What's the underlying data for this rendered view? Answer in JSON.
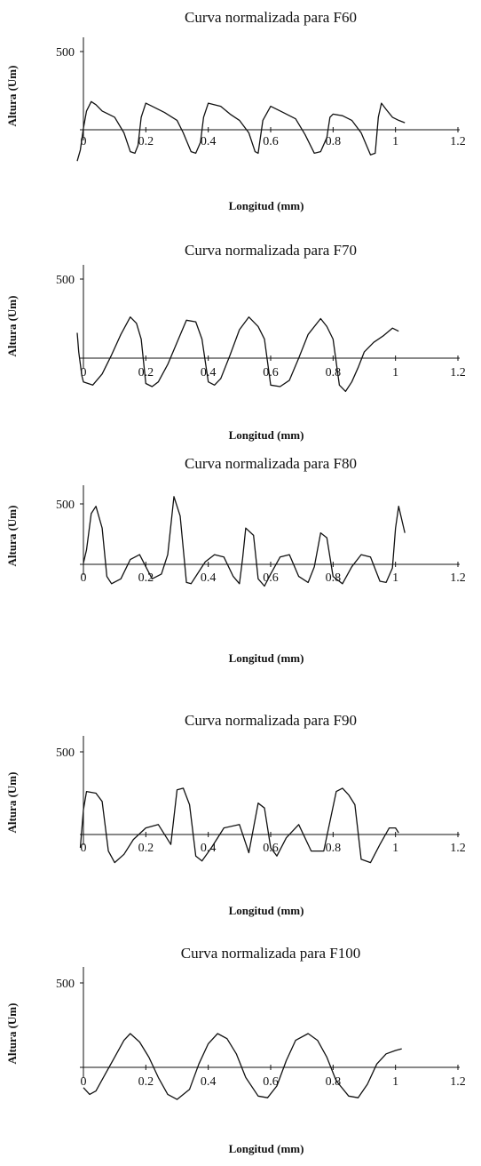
{
  "chart_data": [
    {
      "type": "line",
      "title": "Curva normalizada para F60",
      "xlabel": "Longitud (mm)",
      "ylabel": "Altura (Um)",
      "xlim": [
        0,
        1.2
      ],
      "ylim": [
        -180,
        500
      ],
      "xticks": [
        "0",
        "0.2",
        "0.4",
        "0.6",
        "0.8",
        "1",
        "1.2"
      ],
      "yticks": [
        "500"
      ],
      "series": [
        {
          "color": "#111111",
          "x": [
            -0.02,
            -0.01,
            0.0,
            0.01,
            0.025,
            0.04,
            0.06,
            0.1,
            0.13,
            0.15,
            0.165,
            0.175,
            0.185,
            0.2,
            0.22,
            0.26,
            0.3,
            0.32,
            0.345,
            0.36,
            0.375,
            0.385,
            0.4,
            0.44,
            0.47,
            0.5,
            0.53,
            0.55,
            0.56,
            0.575,
            0.6,
            0.64,
            0.68,
            0.71,
            0.74,
            0.76,
            0.78,
            0.79,
            0.8,
            0.83,
            0.86,
            0.89,
            0.92,
            0.935,
            0.945,
            0.955,
            0.97,
            0.99,
            1.01,
            1.03
          ],
          "y": [
            -200,
            -130,
            10,
            120,
            180,
            160,
            120,
            80,
            -20,
            -140,
            -150,
            -100,
            80,
            170,
            150,
            110,
            60,
            -20,
            -140,
            -150,
            -80,
            80,
            170,
            150,
            100,
            60,
            -20,
            -140,
            -150,
            60,
            150,
            110,
            70,
            -30,
            -150,
            -140,
            -50,
            80,
            100,
            90,
            60,
            -20,
            -160,
            -150,
            80,
            170,
            130,
            80,
            60,
            45
          ]
        }
      ]
    },
    {
      "type": "line",
      "title": "Curva normalizada para F70",
      "xlabel": "Longitud (mm)",
      "ylabel": "Altura (Um)",
      "xlim": [
        0,
        1.2
      ],
      "ylim": [
        -220,
        500
      ],
      "xticks": [
        "0",
        "0.2",
        "0.4",
        "0.6",
        "0.8",
        "1",
        "1.2"
      ],
      "yticks": [
        "500"
      ],
      "series": [
        {
          "color": "#111111",
          "x": [
            -0.02,
            -0.015,
            -0.005,
            0.0,
            0.03,
            0.06,
            0.09,
            0.12,
            0.15,
            0.17,
            0.185,
            0.2,
            0.22,
            0.24,
            0.27,
            0.3,
            0.33,
            0.36,
            0.38,
            0.4,
            0.42,
            0.44,
            0.47,
            0.5,
            0.53,
            0.56,
            0.58,
            0.6,
            0.63,
            0.66,
            0.69,
            0.72,
            0.76,
            0.78,
            0.8,
            0.82,
            0.84,
            0.86,
            0.88,
            0.9,
            0.93,
            0.96,
            0.99,
            1.01
          ],
          "y": [
            160,
            40,
            -110,
            -150,
            -170,
            -100,
            20,
            150,
            260,
            220,
            120,
            -160,
            -180,
            -150,
            -40,
            100,
            240,
            230,
            120,
            -150,
            -170,
            -130,
            20,
            180,
            260,
            200,
            120,
            -170,
            -180,
            -140,
            0,
            150,
            250,
            200,
            120,
            -170,
            -210,
            -150,
            -60,
            40,
            100,
            140,
            190,
            170
          ]
        }
      ]
    },
    {
      "type": "line",
      "title": "Curva normalizada para F80",
      "xlabel": "Longitud (mm)",
      "ylabel": "Altura (Um)",
      "xlim": [
        0,
        1.2
      ],
      "ylim": [
        -200,
        560
      ],
      "xticks": [
        "0",
        "0.2",
        "0.4",
        "0.6",
        "0.8",
        "1",
        "1.2"
      ],
      "yticks": [
        "500"
      ],
      "series": [
        {
          "color": "#111111",
          "x": [
            0.0,
            0.01,
            0.025,
            0.04,
            0.06,
            0.075,
            0.09,
            0.12,
            0.15,
            0.18,
            0.22,
            0.25,
            0.27,
            0.29,
            0.31,
            0.33,
            0.345,
            0.36,
            0.39,
            0.42,
            0.45,
            0.48,
            0.5,
            0.51,
            0.52,
            0.545,
            0.56,
            0.58,
            0.6,
            0.63,
            0.66,
            0.69,
            0.72,
            0.74,
            0.76,
            0.78,
            0.8,
            0.83,
            0.86,
            0.89,
            0.92,
            0.95,
            0.97,
            0.99,
            1.0,
            1.01,
            1.03
          ],
          "y": [
            10,
            120,
            420,
            480,
            300,
            -100,
            -160,
            -120,
            40,
            80,
            -120,
            -80,
            80,
            560,
            400,
            -150,
            -160,
            -100,
            20,
            80,
            60,
            -100,
            -160,
            50,
            300,
            240,
            -120,
            -180,
            -80,
            60,
            80,
            -100,
            -150,
            -20,
            260,
            220,
            -100,
            -160,
            -20,
            80,
            60,
            -140,
            -150,
            -30,
            300,
            480,
            260
          ]
        }
      ]
    },
    {
      "type": "line",
      "title": "Curva normalizada para F90",
      "xlabel": "Longitud (mm)",
      "ylabel": "Altura (Um)",
      "xlim": [
        0,
        1.2
      ],
      "ylim": [
        -200,
        500
      ],
      "xticks": [
        "0",
        "0.2",
        "0.4",
        "0.6",
        "0.8",
        "1",
        "1.2"
      ],
      "yticks": [
        "500"
      ],
      "series": [
        {
          "color": "#111111",
          "x": [
            -0.01,
            0.0,
            0.01,
            0.04,
            0.06,
            0.08,
            0.1,
            0.13,
            0.16,
            0.2,
            0.24,
            0.28,
            0.3,
            0.32,
            0.34,
            0.36,
            0.38,
            0.41,
            0.45,
            0.5,
            0.53,
            0.56,
            0.58,
            0.6,
            0.62,
            0.65,
            0.69,
            0.73,
            0.77,
            0.81,
            0.83,
            0.85,
            0.87,
            0.89,
            0.92,
            0.95,
            0.98,
            1.0,
            1.01
          ],
          "y": [
            -80,
            150,
            260,
            250,
            200,
            -100,
            -170,
            -120,
            -30,
            40,
            60,
            -60,
            270,
            280,
            180,
            -130,
            -160,
            -80,
            40,
            60,
            -110,
            190,
            160,
            -80,
            -130,
            -20,
            60,
            -100,
            -100,
            260,
            280,
            240,
            180,
            -150,
            -170,
            -60,
            40,
            40,
            10
          ]
        }
      ]
    },
    {
      "type": "line",
      "title": "Curva normalizada para F100",
      "xlabel": "Longitud (mm)",
      "ylabel": "Altura (Um)",
      "xlim": [
        0,
        1.2
      ],
      "ylim": [
        -220,
        500
      ],
      "xticks": [
        "0",
        "0.2",
        "0.4",
        "0.6",
        "0.8",
        "1",
        "1.2"
      ],
      "yticks": [
        "500"
      ],
      "series": [
        {
          "color": "#111111",
          "x": [
            0.0,
            0.02,
            0.04,
            0.07,
            0.1,
            0.13,
            0.15,
            0.18,
            0.21,
            0.24,
            0.27,
            0.3,
            0.34,
            0.37,
            0.4,
            0.43,
            0.46,
            0.49,
            0.52,
            0.56,
            0.59,
            0.62,
            0.65,
            0.68,
            0.72,
            0.75,
            0.78,
            0.81,
            0.85,
            0.88,
            0.91,
            0.94,
            0.97,
            1.0,
            1.02
          ],
          "y": [
            -120,
            -160,
            -140,
            -40,
            60,
            160,
            200,
            150,
            60,
            -60,
            -160,
            -190,
            -130,
            20,
            140,
            200,
            170,
            80,
            -60,
            -170,
            -180,
            -110,
            40,
            160,
            200,
            160,
            60,
            -80,
            -170,
            -180,
            -100,
            20,
            80,
            100,
            110
          ]
        }
      ]
    }
  ]
}
